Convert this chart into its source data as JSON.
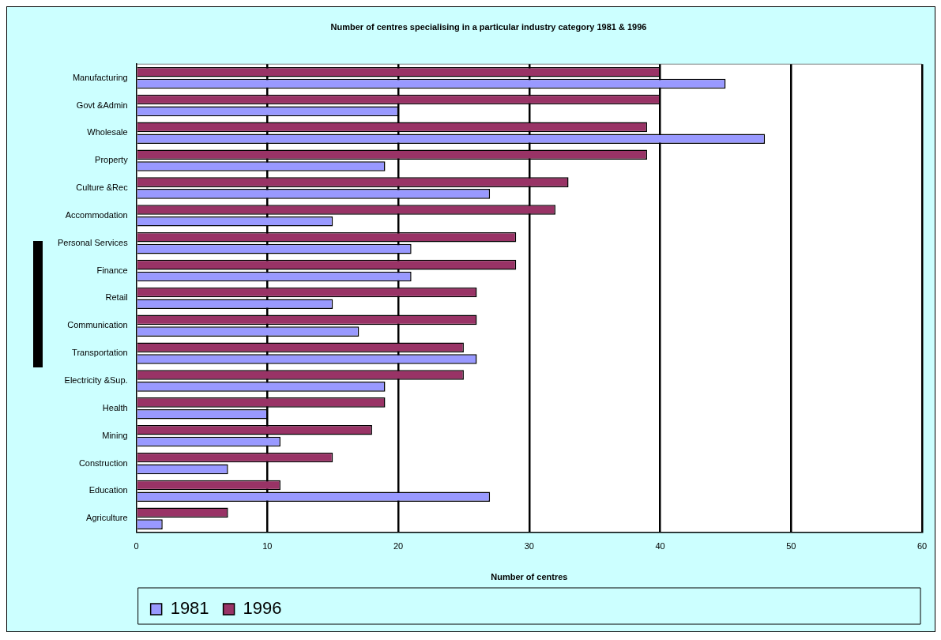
{
  "chart_data": {
    "type": "bar",
    "orientation": "horizontal",
    "title": "Number of centres specialising in a particular industry category 1981 & 1996",
    "xlabel": "Number of centres",
    "categories": [
      "Manufacturing",
      "Govt &Admin",
      "Wholesale",
      "Property",
      "Culture &Rec",
      "Accommodation",
      "Personal Services",
      "Finance",
      "Retail",
      "Communication",
      "Transportation",
      "Electricity &Sup.",
      "Health",
      "Mining",
      "Construction",
      "Education",
      "Agriculture"
    ],
    "series": [
      {
        "name": "1981",
        "color": "#9999ff",
        "values": [
          45,
          20,
          48,
          19,
          27,
          15,
          21,
          21,
          15,
          17,
          26,
          19,
          10,
          11,
          7,
          27,
          2
        ]
      },
      {
        "name": "1996",
        "color": "#993366",
        "values": [
          40,
          40,
          39,
          39,
          33,
          32,
          29,
          29,
          26,
          26,
          25,
          25,
          19,
          18,
          15,
          11,
          7
        ]
      }
    ],
    "xlim": [
      0,
      60
    ],
    "xticks": [
      0,
      10,
      20,
      30,
      40,
      50,
      60
    ],
    "grid": "x",
    "legend": "bottom"
  }
}
